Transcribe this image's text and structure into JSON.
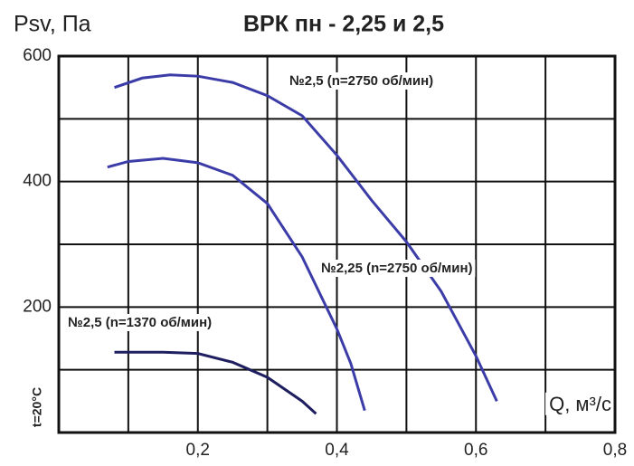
{
  "chart_data": {
    "type": "line",
    "title": "ВРК пн - 2,25 и 2,5",
    "y_label": "Psv, Па",
    "x_label": "Q, м³/с",
    "annotation": "t=20°C",
    "xlim": [
      0,
      0.8
    ],
    "ylim": [
      0,
      600
    ],
    "xticks": [
      {
        "value": 0.2,
        "label": "0,2"
      },
      {
        "value": 0.4,
        "label": "0,4"
      },
      {
        "value": 0.6,
        "label": "0,6"
      },
      {
        "value": 0.8,
        "label": "0,8"
      }
    ],
    "yticks": [
      200,
      400,
      600
    ],
    "xgrid": [
      0,
      0.1,
      0.2,
      0.3,
      0.4,
      0.5,
      0.6,
      0.7,
      0.8
    ],
    "ygrid": [
      0,
      100,
      200,
      300,
      400,
      500,
      600
    ],
    "series": [
      {
        "name": "№2,5 (n=2750 об/мин)",
        "color": "#3c3ca8",
        "x": [
          0.08,
          0.12,
          0.16,
          0.2,
          0.25,
          0.3,
          0.35,
          0.4,
          0.45,
          0.5,
          0.55,
          0.6,
          0.63
        ],
        "values": [
          550,
          565,
          570,
          568,
          558,
          537,
          505,
          442,
          370,
          304,
          225,
          122,
          50
        ]
      },
      {
        "name": "№2,25 (n=2750 об/мин)",
        "color": "#3c3ca8",
        "x": [
          0.07,
          0.1,
          0.15,
          0.2,
          0.25,
          0.3,
          0.35,
          0.4,
          0.42,
          0.44
        ],
        "values": [
          423,
          432,
          437,
          430,
          410,
          365,
          280,
          165,
          110,
          35
        ]
      },
      {
        "name": "№2,5 (n=1370 об/мин)",
        "color": "#1e1e60",
        "x": [
          0.08,
          0.15,
          0.2,
          0.25,
          0.3,
          0.35,
          0.37
        ],
        "values": [
          128,
          128,
          126,
          112,
          88,
          50,
          30
        ]
      }
    ]
  }
}
